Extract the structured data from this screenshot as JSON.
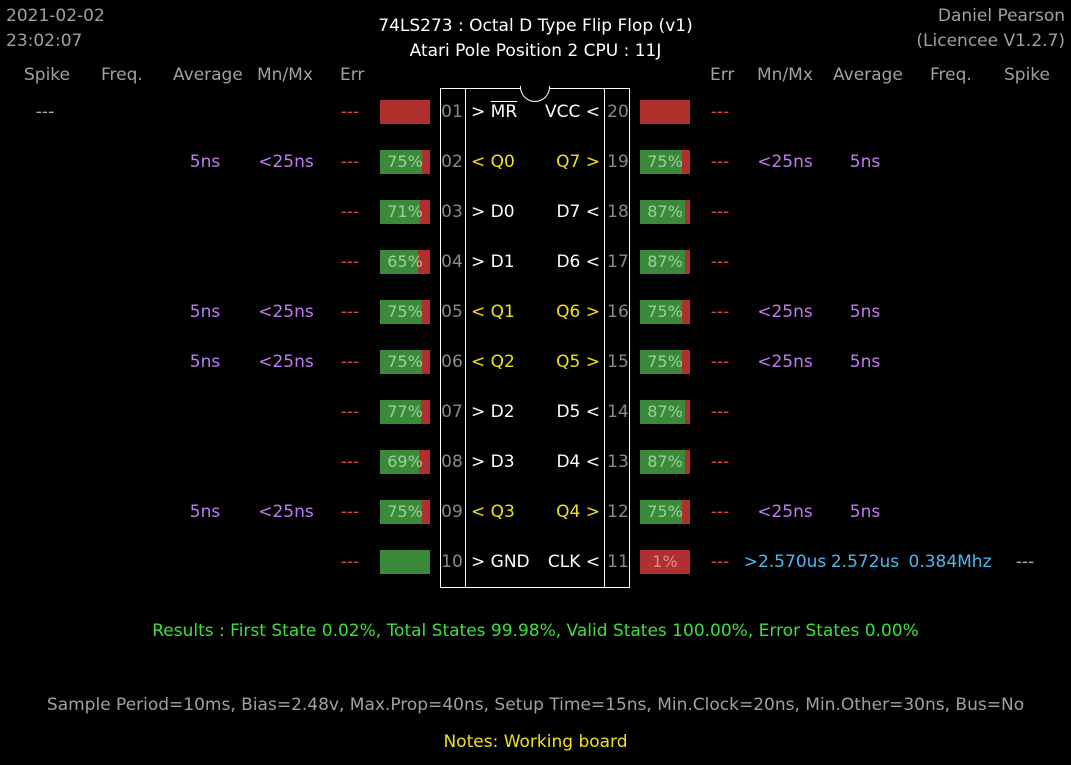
{
  "header": {
    "date": "2021-02-02",
    "time": "23:02:07",
    "title": "74LS273  :  Octal D Type Flip Flop (v1)",
    "subtitle": "Atari Pole Position 2 CPU : 11J",
    "author": "Daniel Pearson",
    "licence": "(Licencee V1.2.7)"
  },
  "columns": {
    "left": [
      "Spike",
      "Freq.",
      "Average",
      "Mn/Mx",
      "Err"
    ],
    "right": [
      "Err",
      "Mn/Mx",
      "Average",
      "Freq.",
      "Spike"
    ]
  },
  "left_pins": [
    {
      "num": "01",
      "name": "> MR",
      "overline": "MR",
      "yellow": false,
      "bar": null,
      "fill": 0,
      "err": "---",
      "mnmx": "",
      "avg": "",
      "freq": "",
      "spike": "---"
    },
    {
      "num": "02",
      "name": "< Q0",
      "yellow": true,
      "bar": "75%",
      "fill": 0.84,
      "err": "---",
      "mnmx": "<25ns",
      "avg": "5ns",
      "freq": "",
      "spike": ""
    },
    {
      "num": "03",
      "name": "> D0",
      "yellow": false,
      "bar": "71%",
      "fill": 0.8,
      "err": "---",
      "mnmx": "",
      "avg": "",
      "freq": "",
      "spike": ""
    },
    {
      "num": "04",
      "name": "> D1",
      "yellow": false,
      "bar": "65%",
      "fill": 0.76,
      "err": "---",
      "mnmx": "",
      "avg": "",
      "freq": "",
      "spike": ""
    },
    {
      "num": "05",
      "name": "< Q1",
      "yellow": true,
      "bar": "75%",
      "fill": 0.84,
      "err": "---",
      "mnmx": "<25ns",
      "avg": "5ns",
      "freq": "",
      "spike": ""
    },
    {
      "num": "06",
      "name": "< Q2",
      "yellow": true,
      "bar": "75%",
      "fill": 0.84,
      "err": "---",
      "mnmx": "<25ns",
      "avg": "5ns",
      "freq": "",
      "spike": ""
    },
    {
      "num": "07",
      "name": "> D2",
      "yellow": false,
      "bar": "77%",
      "fill": 0.82,
      "err": "---",
      "mnmx": "",
      "avg": "",
      "freq": "",
      "spike": ""
    },
    {
      "num": "08",
      "name": "> D3",
      "yellow": false,
      "bar": "69%",
      "fill": 0.78,
      "err": "---",
      "mnmx": "",
      "avg": "",
      "freq": "",
      "spike": ""
    },
    {
      "num": "09",
      "name": "< Q3",
      "yellow": true,
      "bar": "75%",
      "fill": 0.84,
      "err": "---",
      "mnmx": "<25ns",
      "avg": "5ns",
      "freq": "",
      "spike": ""
    },
    {
      "num": "10",
      "name": "> GND",
      "yellow": false,
      "bar": "",
      "fill": 1,
      "err": "---",
      "mnmx": "",
      "avg": "",
      "freq": "",
      "spike": ""
    }
  ],
  "right_pins": [
    {
      "num": "20",
      "name": "VCC <",
      "yellow": false,
      "bar": null,
      "fill": 0,
      "err": "---",
      "mnmx": "",
      "avg": "",
      "freq": "",
      "spike": ""
    },
    {
      "num": "19",
      "name": "Q7 >",
      "yellow": true,
      "bar": "75%",
      "fill": 0.84,
      "err": "---",
      "mnmx": "<25ns",
      "avg": "5ns",
      "freq": "",
      "spike": ""
    },
    {
      "num": "18",
      "name": "D7 <",
      "yellow": false,
      "bar": "87%",
      "fill": 0.9,
      "err": "---",
      "mnmx": "",
      "avg": "",
      "freq": "",
      "spike": ""
    },
    {
      "num": "17",
      "name": "D6 <",
      "yellow": false,
      "bar": "87%",
      "fill": 0.9,
      "err": "---",
      "mnmx": "",
      "avg": "",
      "freq": "",
      "spike": ""
    },
    {
      "num": "16",
      "name": "Q6 >",
      "yellow": true,
      "bar": "75%",
      "fill": 0.84,
      "err": "---",
      "mnmx": "<25ns",
      "avg": "5ns",
      "freq": "",
      "spike": ""
    },
    {
      "num": "15",
      "name": "Q5 >",
      "yellow": true,
      "bar": "75%",
      "fill": 0.84,
      "err": "---",
      "mnmx": "<25ns",
      "avg": "5ns",
      "freq": "",
      "spike": ""
    },
    {
      "num": "14",
      "name": "D5 <",
      "yellow": false,
      "bar": "87%",
      "fill": 0.9,
      "err": "---",
      "mnmx": "",
      "avg": "",
      "freq": "",
      "spike": ""
    },
    {
      "num": "13",
      "name": "D4 <",
      "yellow": false,
      "bar": "87%",
      "fill": 0.9,
      "err": "---",
      "mnmx": "",
      "avg": "",
      "freq": "",
      "spike": ""
    },
    {
      "num": "12",
      "name": "Q4 >",
      "yellow": true,
      "bar": "75%",
      "fill": 0.84,
      "err": "---",
      "mnmx": "<25ns",
      "avg": "5ns",
      "freq": "",
      "spike": ""
    },
    {
      "num": "11",
      "name": "CLK <",
      "yellow": false,
      "bar": "1%",
      "fill": 0,
      "low": true,
      "err": "---",
      "mnmx": ">2.570us",
      "avg": "2.572us",
      "freq": "0.384Mhz",
      "spike": "---",
      "blue": true
    }
  ],
  "results": "Results  :  First State 0.02%,  Total States 99.98%,  Valid States 100.00%,  Error States 0.00%",
  "settings": "Sample Period=10ms,  Bias=2.48v,  Max.Prop=40ns,  Setup Time=15ns,  Min.Clock=20ns,  Min.Other=30ns,  Bus=No",
  "notes": "Notes:  Working board",
  "colors": {
    "bar_green": "#3a8a3a",
    "bar_red": "#b03030",
    "text_purple": "#c07cf0",
    "text_blue": "#4fb6f0",
    "text_yellow": "#f0e020",
    "results_green": "#3ce03c"
  }
}
